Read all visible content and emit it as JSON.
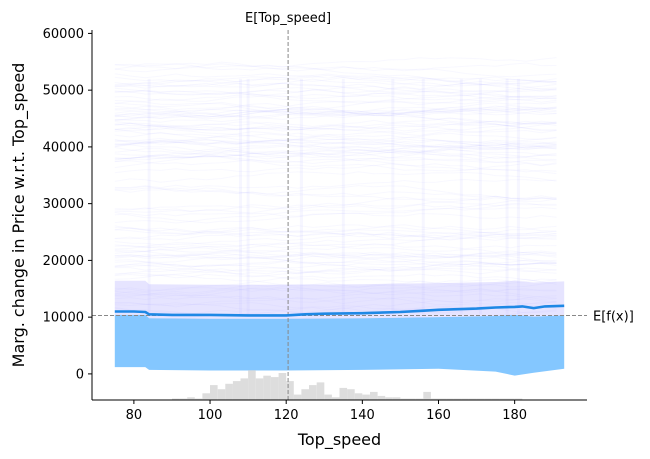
{
  "chart_data": {
    "type": "line",
    "xlabel": "Top_speed",
    "ylabel": "Marg. change in Price w.r.t. Top_speed",
    "xlim": [
      69,
      199
    ],
    "ylim": [
      -4600,
      60600
    ],
    "x_ticks": [
      80,
      100,
      120,
      140,
      160,
      180
    ],
    "y_ticks": [
      0,
      10000,
      20000,
      30000,
      40000,
      50000,
      60000
    ],
    "grid": false,
    "legend": "none",
    "average_line": {
      "x": [
        75,
        80,
        83,
        84,
        90,
        100,
        110,
        120,
        125,
        130,
        140,
        150,
        155,
        160,
        165,
        170,
        175,
        180,
        182,
        185,
        188,
        193
      ],
      "y": [
        11000,
        11000,
        10900,
        10500,
        10400,
        10400,
        10300,
        10300,
        10500,
        10600,
        10700,
        10900,
        11100,
        11300,
        11400,
        11500,
        11700,
        11800,
        11900,
        11600,
        11900,
        12000
      ],
      "color": "#1E88E5"
    },
    "dense_band": {
      "x": [
        75,
        83,
        84,
        100,
        120,
        140,
        160,
        175,
        180,
        185,
        193
      ],
      "lower": [
        1200,
        1200,
        700,
        600,
        600,
        700,
        900,
        400,
        -300,
        200,
        900
      ],
      "upper": [
        10400,
        10400,
        9800,
        9700,
        9700,
        9800,
        10000,
        10200,
        10400,
        10100,
        10300
      ],
      "color": "#7DC4FF"
    },
    "faint_lines_color": "#8C86FF",
    "faint_lines_range": [
      10000,
      55000
    ],
    "vertical_reference": {
      "label": "E[Top_speed]",
      "x": 120.5
    },
    "horizontal_reference": {
      "label": "E[f(x)]",
      "y": 10300
    },
    "histogram": {
      "bins": [
        90,
        92,
        94,
        96,
        98,
        100,
        102,
        104,
        106,
        108,
        110,
        112,
        114,
        116,
        118,
        120,
        122,
        124,
        126,
        128,
        130,
        132,
        134,
        136,
        138,
        140,
        142,
        144,
        146,
        148,
        150,
        152,
        154,
        156,
        158,
        160,
        162,
        164,
        166,
        168,
        170,
        172,
        174,
        176,
        178,
        180
      ],
      "heights": [
        1,
        1,
        2,
        1,
        5,
        11,
        8,
        12,
        14,
        16,
        22,
        16,
        18,
        17,
        20,
        14,
        4,
        8,
        11,
        13,
        4,
        2,
        9,
        8,
        5,
        4,
        6,
        3,
        2,
        2,
        1,
        1,
        1,
        6,
        1,
        1,
        1,
        1,
        1,
        1,
        1,
        1,
        1,
        1,
        1,
        1
      ],
      "color": "#DDDDDD"
    }
  }
}
